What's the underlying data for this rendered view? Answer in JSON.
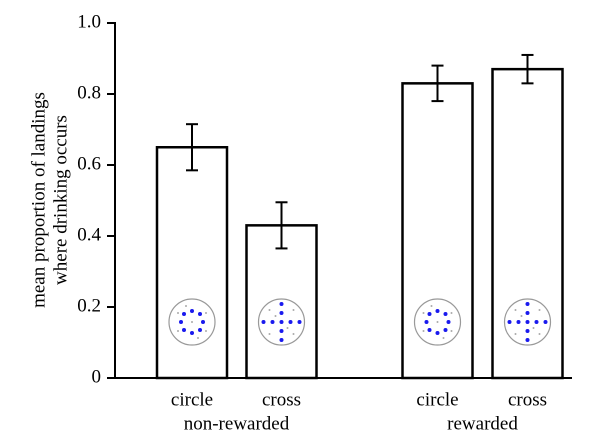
{
  "chart_data": {
    "type": "bar",
    "ylabel": [
      "mean proportion of landings",
      "where drinking occurs"
    ],
    "categories": [
      "circle",
      "cross",
      "circle",
      "cross"
    ],
    "groups": [
      "non-rewarded",
      "rewarded"
    ],
    "values": [
      0.65,
      0.43,
      0.83,
      0.87
    ],
    "errors": [
      0.065,
      0.065,
      0.05,
      0.04
    ],
    "color": "#ffffff",
    "ylim": [
      0,
      1
    ],
    "yticks": [
      0,
      0.2,
      0.4,
      0.6,
      0.8,
      {
        "value": 1,
        "label": "1.0"
      }
    ],
    "grid": false
  }
}
